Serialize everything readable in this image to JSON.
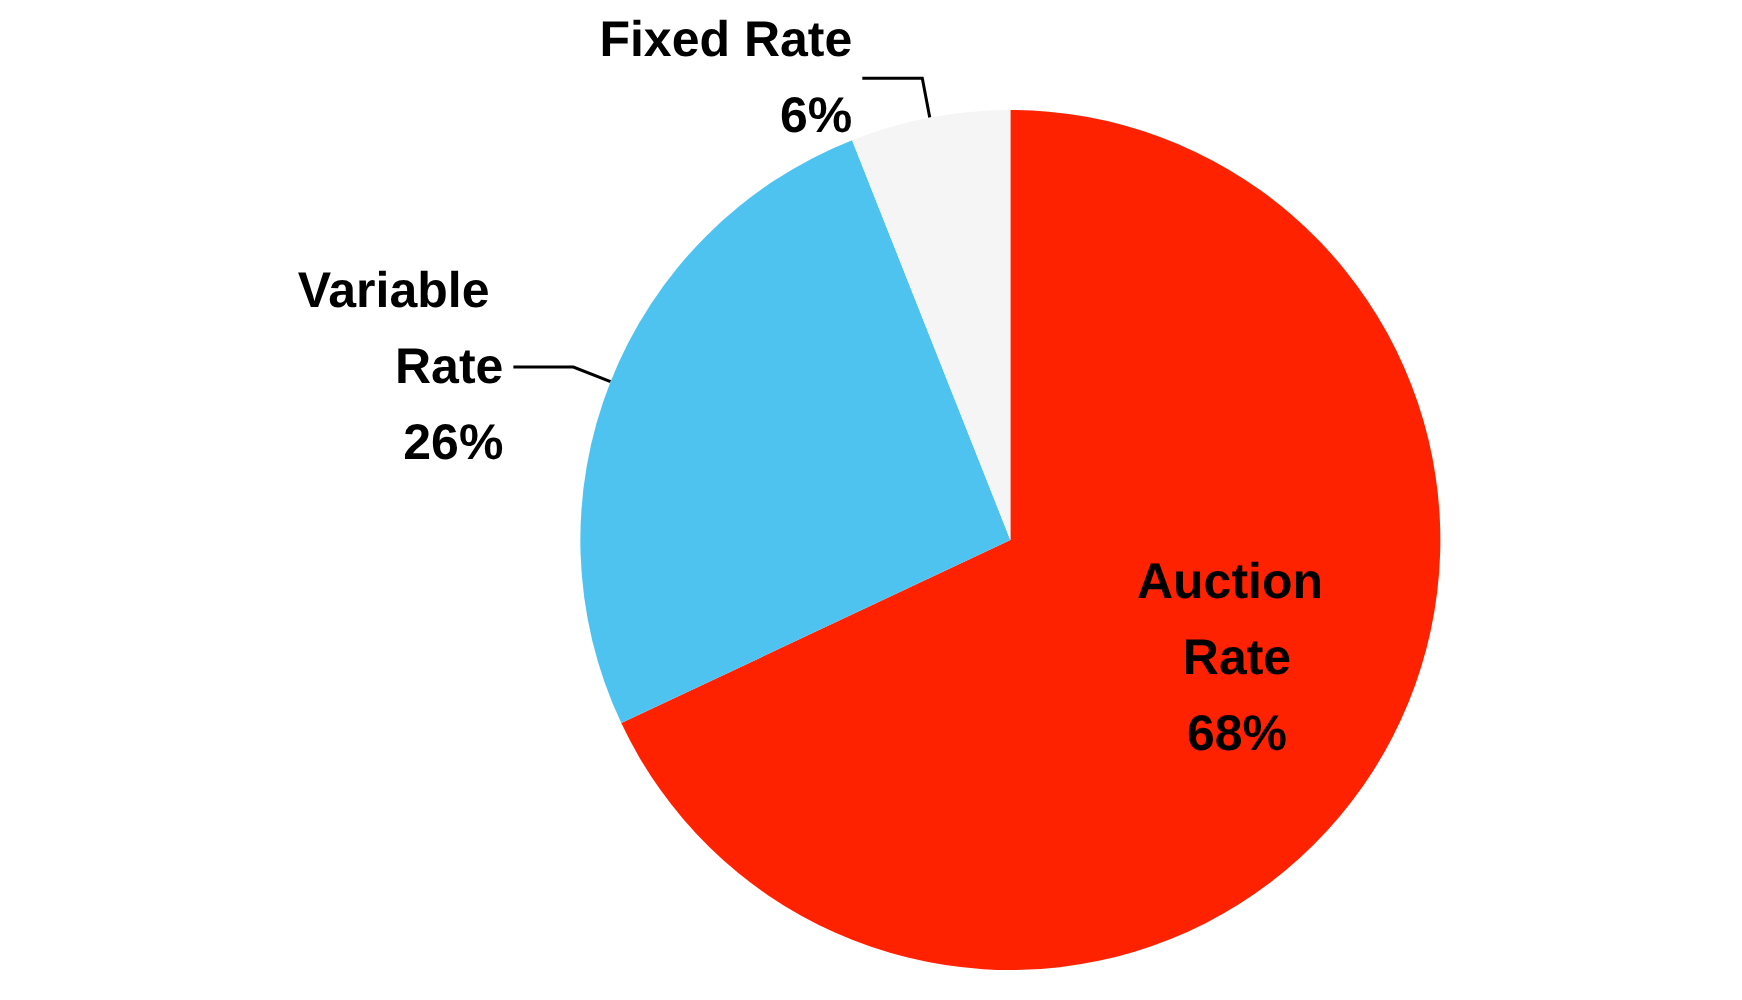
{
  "chart_data": {
    "type": "pie",
    "categories": [
      "Auction Rate",
      "Variable Rate",
      "Fixed Rate"
    ],
    "values": [
      68,
      26,
      6
    ],
    "colors": [
      "#ff2200",
      "#4fc3f0",
      "#f5f5f5"
    ],
    "value_labels": [
      "68%",
      "26%",
      "6%"
    ]
  }
}
